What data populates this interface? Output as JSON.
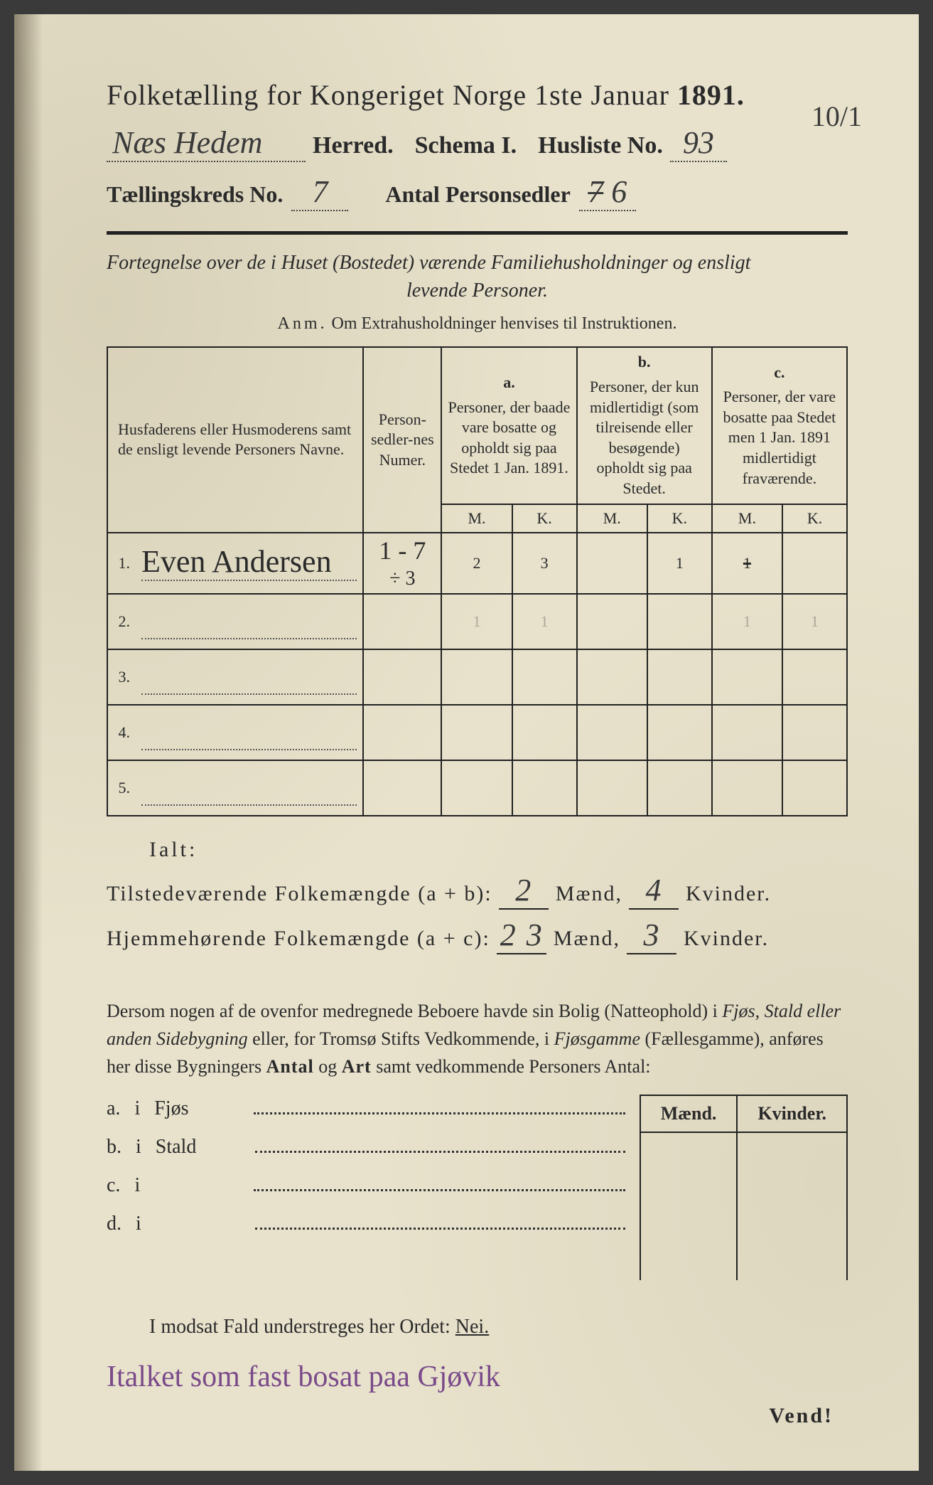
{
  "header": {
    "title_prefix": "Folketælling for Kongeriget Norge 1ste Januar",
    "year": "1891.",
    "herred_value": "Næs Hedem",
    "herred_label": "Herred.",
    "schema_label": "Schema I.",
    "husliste_label": "Husliste No.",
    "husliste_value": "93",
    "corner_note": "10/1",
    "kreds_label": "Tællingskreds No.",
    "kreds_value": "7",
    "antal_label": "Antal Personsedler",
    "antal_value": "7 6",
    "antal_strike": true
  },
  "subtitle": {
    "line1": "Fortegnelse over de i Huset (Bostedet) værende Familiehusholdninger og ensligt",
    "line2": "levende Personer.",
    "anm_label": "Anm.",
    "anm_text": "Om Extrahusholdninger henvises til Instruktionen."
  },
  "table": {
    "col_names": "Husfaderens eller Husmoderens samt de ensligt levende Personers Navne.",
    "col_numer": "Person-sedler-nes Numer.",
    "col_a_label": "a.",
    "col_a": "Personer, der baade vare bosatte og opholdt sig paa Stedet 1 Jan. 1891.",
    "col_b_label": "b.",
    "col_b": "Personer, der kun midlertidigt (som tilreisende eller besøgende) opholdt sig paa Stedet.",
    "col_c_label": "c.",
    "col_c": "Personer, der vare bosatte paa Stedet men 1 Jan. 1891 midlertidigt fraværende.",
    "M": "M.",
    "K": "K.",
    "rows": [
      {
        "n": "1.",
        "name": "Even Andersen",
        "numer": "1 - 7",
        "sub": "÷ 3",
        "aM": "2",
        "aK": "3",
        "bM": "",
        "bK": "1",
        "cM": "1",
        "cK": "",
        "cM_strike": true
      },
      {
        "n": "2.",
        "name": "",
        "numer": "",
        "aM": "1",
        "aK": "1",
        "bM": "",
        "bK": "",
        "cM": "1",
        "cK": "1",
        "faint": true
      },
      {
        "n": "3.",
        "name": "",
        "numer": "",
        "aM": "",
        "aK": "",
        "bM": "",
        "bK": "",
        "cM": "",
        "cK": ""
      },
      {
        "n": "4.",
        "name": "",
        "numer": "",
        "aM": "",
        "aK": "",
        "bM": "",
        "bK": "",
        "cM": "",
        "cK": ""
      },
      {
        "n": "5.",
        "name": "",
        "numer": "",
        "aM": "",
        "aK": "",
        "bM": "",
        "bK": "",
        "cM": "",
        "cK": ""
      }
    ]
  },
  "totals": {
    "ialt": "Ialt:",
    "row1_label": "Tilstedeværende Folkemængde (a + b):",
    "row1_m": "2",
    "row1_k": "4",
    "row2_label": "Hjemmehørende Folkemængde (a + c):",
    "row2_m": "2 3",
    "row2_k": "3",
    "maend": "Mænd,",
    "kvinder": "Kvinder."
  },
  "para": {
    "text1": "Dersom nogen af de ovenfor medregnede Beboere havde sin Bolig (Natteophold) i ",
    "i1": "Fjøs, Stald eller anden Sidebygning",
    "text2": " eller, for Tromsø Stifts Vedkommende, i ",
    "i2": "Fjøsgamme",
    "paren": " (Fællesgamme), anføres her disse Bygningers ",
    "b1": "Antal",
    "text3": " og ",
    "b2": "Art",
    "text4": " samt vedkommende Personers Antal:"
  },
  "sidebygning": {
    "maend": "Mænd.",
    "kvinder": "Kvinder.",
    "rows": [
      {
        "k": "a.",
        "i": "i",
        "label": "Fjøs"
      },
      {
        "k": "b.",
        "i": "i",
        "label": "Stald"
      },
      {
        "k": "c.",
        "i": "i",
        "label": ""
      },
      {
        "k": "d.",
        "i": "i",
        "label": ""
      }
    ]
  },
  "nei": {
    "text": "I modsat Fald understreges her Ordet: ",
    "nei": "Nei."
  },
  "bottom_handwriting": "Italket som fast bosat paa Gjøvik",
  "vend": "Vend!"
}
